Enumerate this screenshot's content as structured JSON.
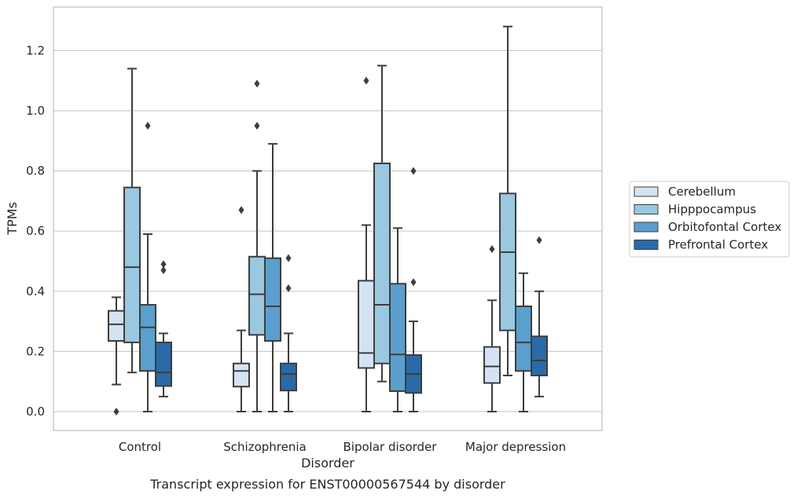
{
  "chart_data": {
    "type": "box",
    "caption": "Transcript expression for ENST00000567544 by disorder",
    "xlabel": "Disorder",
    "ylabel": "TPMs",
    "ylim": [
      -0.06,
      1.35
    ],
    "yticks": [
      "0.0",
      "0.2",
      "0.4",
      "0.6",
      "0.8",
      "1.0",
      "1.2"
    ],
    "grid": "horizontal",
    "legend_position": "right",
    "categories": [
      "Control",
      "Schizophrenia",
      "Bipolar disorder",
      "Major depression"
    ],
    "series": [
      {
        "name": "Cerebellum",
        "color": "#d3e3f3",
        "boxes": [
          {
            "min": 0.09,
            "q1": 0.235,
            "median": 0.29,
            "q3": 0.335,
            "max": 0.38,
            "outliers": [
              0.0
            ]
          },
          {
            "min": 0.0,
            "q1": 0.083,
            "median": 0.135,
            "q3": 0.16,
            "max": 0.27,
            "outliers": [
              0.67
            ]
          },
          {
            "min": 0.0,
            "q1": 0.145,
            "median": 0.195,
            "q3": 0.435,
            "max": 0.62,
            "outliers": [
              1.1
            ]
          },
          {
            "min": 0.0,
            "q1": 0.095,
            "median": 0.15,
            "q3": 0.215,
            "max": 0.37,
            "outliers": [
              0.54
            ]
          }
        ]
      },
      {
        "name": "Hipppocampus",
        "color": "#9ac8e0",
        "boxes": [
          {
            "min": 0.13,
            "q1": 0.23,
            "median": 0.48,
            "q3": 0.745,
            "max": 1.14,
            "outliers": []
          },
          {
            "min": 0.0,
            "q1": 0.255,
            "median": 0.39,
            "q3": 0.515,
            "max": 0.8,
            "outliers": [
              0.95,
              1.09
            ]
          },
          {
            "min": 0.1,
            "q1": 0.16,
            "median": 0.355,
            "q3": 0.825,
            "max": 1.15,
            "outliers": []
          },
          {
            "min": 0.12,
            "q1": 0.27,
            "median": 0.53,
            "q3": 0.725,
            "max": 1.28,
            "outliers": []
          }
        ]
      },
      {
        "name": "Orbitofontal Cortex",
        "color": "#5a9fcd",
        "boxes": [
          {
            "min": 0.0,
            "q1": 0.135,
            "median": 0.28,
            "q3": 0.355,
            "max": 0.59,
            "outliers": [
              0.95
            ]
          },
          {
            "min": 0.0,
            "q1": 0.235,
            "median": 0.35,
            "q3": 0.51,
            "max": 0.89,
            "outliers": []
          },
          {
            "min": 0.0,
            "q1": 0.068,
            "median": 0.19,
            "q3": 0.425,
            "max": 0.61,
            "outliers": []
          },
          {
            "min": 0.0,
            "q1": 0.135,
            "median": 0.23,
            "q3": 0.35,
            "max": 0.46,
            "outliers": []
          }
        ]
      },
      {
        "name": "Prefrontal Cortex",
        "color": "#2b6aa8",
        "boxes": [
          {
            "min": 0.05,
            "q1": 0.085,
            "median": 0.13,
            "q3": 0.23,
            "max": 0.26,
            "outliers": [
              0.47,
              0.49
            ]
          },
          {
            "min": 0.0,
            "q1": 0.07,
            "median": 0.125,
            "q3": 0.16,
            "max": 0.26,
            "outliers": [
              0.41,
              0.51
            ]
          },
          {
            "min": 0.0,
            "q1": 0.062,
            "median": 0.125,
            "q3": 0.188,
            "max": 0.3,
            "outliers": [
              0.43,
              0.8
            ]
          },
          {
            "min": 0.05,
            "q1": 0.12,
            "median": 0.17,
            "q3": 0.25,
            "max": 0.4,
            "outliers": [
              0.57
            ]
          }
        ]
      }
    ]
  }
}
